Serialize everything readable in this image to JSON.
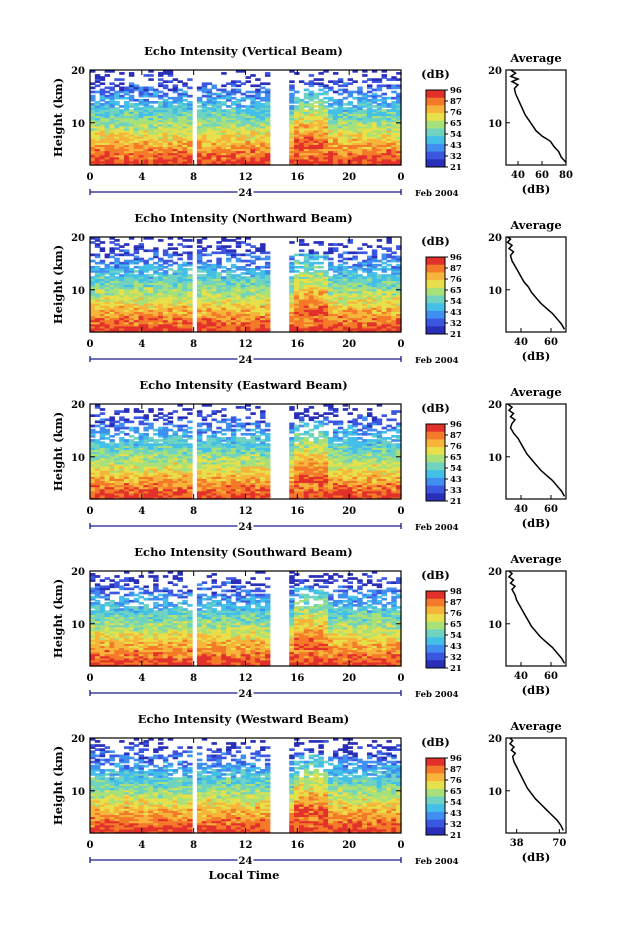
{
  "figure": {
    "xlabel": "Local Time",
    "date_label": "Feb 2004",
    "day_label": "24"
  },
  "chart_data": [
    {
      "type": "heatmap",
      "title": "Echo Intensity (Vertical Beam)",
      "xlabel": "Local Time",
      "ylabel": "Height (km)",
      "xlim": [
        0,
        24
      ],
      "ylim": [
        2,
        20
      ],
      "xticks": [
        "0",
        "4",
        "8",
        "12",
        "16",
        "20",
        "0"
      ],
      "yticks": [
        "10",
        "20"
      ],
      "colorbar": {
        "label": "(dB)",
        "ticks": [
          "96",
          "87",
          "76",
          "65",
          "54",
          "43",
          "32",
          "21"
        ]
      },
      "data_gaps_hours": [
        [
          7.9,
          8.3
        ],
        [
          13.9,
          15.4
        ]
      ],
      "average_profile": {
        "title": "Average",
        "xlabel": "(dB)",
        "xticks": [
          "40",
          "60",
          "80"
        ],
        "xlim": [
          30,
          80
        ],
        "ylim": [
          2,
          20
        ],
        "points": [
          [
            80,
            2.5
          ],
          [
            76,
            3.5
          ],
          [
            74,
            4.5
          ],
          [
            70,
            5.5
          ],
          [
            67,
            6.5
          ],
          [
            60,
            7.5
          ],
          [
            55,
            8.5
          ],
          [
            52,
            9.5
          ],
          [
            49,
            10.5
          ],
          [
            46,
            11.5
          ],
          [
            44,
            12.5
          ],
          [
            42,
            13.5
          ],
          [
            40,
            14.5
          ],
          [
            38,
            15.5
          ],
          [
            37,
            16.5
          ],
          [
            40,
            17.2
          ],
          [
            35,
            17.8
          ],
          [
            40,
            18.3
          ],
          [
            34,
            18.8
          ],
          [
            38,
            19.4
          ],
          [
            34,
            20
          ]
        ]
      }
    },
    {
      "type": "heatmap",
      "title": "Echo Intensity (Northward Beam)",
      "xlabel": "Local Time",
      "ylabel": "Height (km)",
      "xlim": [
        0,
        24
      ],
      "ylim": [
        2,
        20
      ],
      "xticks": [
        "0",
        "4",
        "8",
        "12",
        "16",
        "20",
        "0"
      ],
      "yticks": [
        "10",
        "20"
      ],
      "colorbar": {
        "label": "(dB)",
        "ticks": [
          "96",
          "87",
          "76",
          "65",
          "54",
          "43",
          "32",
          "21"
        ]
      },
      "data_gaps_hours": [
        [
          7.9,
          8.3
        ],
        [
          13.9,
          15.4
        ]
      ],
      "average_profile": {
        "title": "Average",
        "xlabel": "(dB)",
        "xticks": [
          "40",
          "60"
        ],
        "xlim": [
          30,
          70
        ],
        "ylim": [
          2,
          20
        ],
        "points": [
          [
            69,
            2.5
          ],
          [
            67,
            3.5
          ],
          [
            64,
            4.5
          ],
          [
            61,
            5.5
          ],
          [
            57,
            6.5
          ],
          [
            53,
            7.5
          ],
          [
            50,
            8.5
          ],
          [
            47,
            9.5
          ],
          [
            45,
            10.5
          ],
          [
            42,
            11.5
          ],
          [
            40,
            12.5
          ],
          [
            38,
            13.5
          ],
          [
            36,
            14.5
          ],
          [
            34,
            15.5
          ],
          [
            33,
            16.5
          ],
          [
            35,
            17.2
          ],
          [
            32,
            17.8
          ],
          [
            34,
            18.4
          ],
          [
            31,
            19
          ],
          [
            33,
            19.6
          ],
          [
            31,
            20
          ]
        ]
      }
    },
    {
      "type": "heatmap",
      "title": "Echo Intensity (Eastward Beam)",
      "xlabel": "Local Time",
      "ylabel": "Height (km)",
      "xlim": [
        0,
        24
      ],
      "ylim": [
        2,
        20
      ],
      "xticks": [
        "0",
        "4",
        "8",
        "12",
        "16",
        "20",
        "0"
      ],
      "yticks": [
        "10",
        "20"
      ],
      "colorbar": {
        "label": "(dB)",
        "ticks": [
          "96",
          "87",
          "76",
          "65",
          "54",
          "43",
          "33",
          "21"
        ]
      },
      "data_gaps_hours": [
        [
          7.9,
          8.3
        ],
        [
          13.9,
          15.4
        ]
      ],
      "average_profile": {
        "title": "Average",
        "xlabel": "(dB)",
        "xticks": [
          "40",
          "60"
        ],
        "xlim": [
          30,
          70
        ],
        "ylim": [
          2,
          20
        ],
        "points": [
          [
            69,
            2.5
          ],
          [
            67,
            3.5
          ],
          [
            64,
            4.5
          ],
          [
            61,
            5.5
          ],
          [
            57,
            6.5
          ],
          [
            53,
            7.5
          ],
          [
            50,
            8.5
          ],
          [
            47,
            9.5
          ],
          [
            44,
            10.5
          ],
          [
            42,
            11.5
          ],
          [
            40,
            12.5
          ],
          [
            38,
            13.5
          ],
          [
            35,
            14.5
          ],
          [
            33,
            15.5
          ],
          [
            34,
            16.3
          ],
          [
            36,
            17
          ],
          [
            33,
            17.6
          ],
          [
            35,
            18.2
          ],
          [
            32,
            18.8
          ],
          [
            34,
            19.4
          ],
          [
            31,
            20
          ]
        ]
      }
    },
    {
      "type": "heatmap",
      "title": "Echo Intensity (Southward Beam)",
      "xlabel": "Local Time",
      "ylabel": "Height (km)",
      "xlim": [
        0,
        24
      ],
      "ylim": [
        2,
        20
      ],
      "xticks": [
        "0",
        "4",
        "8",
        "12",
        "16",
        "20",
        "0"
      ],
      "yticks": [
        "10",
        "20"
      ],
      "colorbar": {
        "label": "(dB)",
        "ticks": [
          "98",
          "87",
          "76",
          "65",
          "54",
          "43",
          "32",
          "21"
        ]
      },
      "data_gaps_hours": [
        [
          7.9,
          8.3
        ],
        [
          13.9,
          15.4
        ]
      ],
      "average_profile": {
        "title": "Average",
        "xlabel": "(dB)",
        "xticks": [
          "40",
          "60"
        ],
        "xlim": [
          30,
          70
        ],
        "ylim": [
          2,
          20
        ],
        "points": [
          [
            69,
            2.5
          ],
          [
            67,
            3.5
          ],
          [
            64,
            4.5
          ],
          [
            61,
            5.5
          ],
          [
            57,
            6.5
          ],
          [
            53,
            7.5
          ],
          [
            50,
            8.5
          ],
          [
            47,
            9.5
          ],
          [
            45,
            10.5
          ],
          [
            43,
            11.5
          ],
          [
            41,
            12.5
          ],
          [
            39,
            13.5
          ],
          [
            37,
            14.5
          ],
          [
            36,
            15.5
          ],
          [
            34,
            16.5
          ],
          [
            36,
            17.1
          ],
          [
            33,
            17.7
          ],
          [
            35,
            18.3
          ],
          [
            32,
            18.9
          ],
          [
            34,
            19.5
          ],
          [
            32,
            20
          ]
        ]
      }
    },
    {
      "type": "heatmap",
      "title": "Echo Intensity (Westward Beam)",
      "xlabel": "Local Time",
      "ylabel": "Height (km)",
      "xlim": [
        0,
        24
      ],
      "ylim": [
        2,
        20
      ],
      "xticks": [
        "0",
        "4",
        "8",
        "12",
        "16",
        "20",
        "0"
      ],
      "yticks": [
        "10",
        "20"
      ],
      "colorbar": {
        "label": "(dB)",
        "ticks": [
          "96",
          "87",
          "76",
          "65",
          "54",
          "43",
          "32",
          "21"
        ]
      },
      "data_gaps_hours": [
        [
          7.9,
          8.3
        ],
        [
          13.9,
          15.4
        ]
      ],
      "average_profile": {
        "title": "Average",
        "xlabel": "(dB)",
        "xticks": [
          "38",
          "70"
        ],
        "xlim": [
          30,
          75
        ],
        "ylim": [
          2,
          20
        ],
        "points": [
          [
            73,
            2.5
          ],
          [
            71,
            3.5
          ],
          [
            68,
            4.5
          ],
          [
            64,
            5.5
          ],
          [
            60,
            6.5
          ],
          [
            56,
            7.5
          ],
          [
            52,
            8.5
          ],
          [
            49,
            9.5
          ],
          [
            46,
            10.5
          ],
          [
            44,
            11.5
          ],
          [
            42,
            12.5
          ],
          [
            40,
            13.5
          ],
          [
            38,
            14.5
          ],
          [
            36,
            15.5
          ],
          [
            35,
            16.5
          ],
          [
            37,
            17.1
          ],
          [
            34,
            17.7
          ],
          [
            36,
            18.3
          ],
          [
            33,
            18.9
          ],
          [
            35,
            19.5
          ],
          [
            33,
            20
          ]
        ]
      }
    }
  ],
  "colormap": [
    "#2a2fb8",
    "#3b56e0",
    "#3f8ef0",
    "#43bfe8",
    "#6fd3c0",
    "#a8e07a",
    "#e8e04a",
    "#f6b43a",
    "#f47a2a",
    "#e2302a"
  ]
}
